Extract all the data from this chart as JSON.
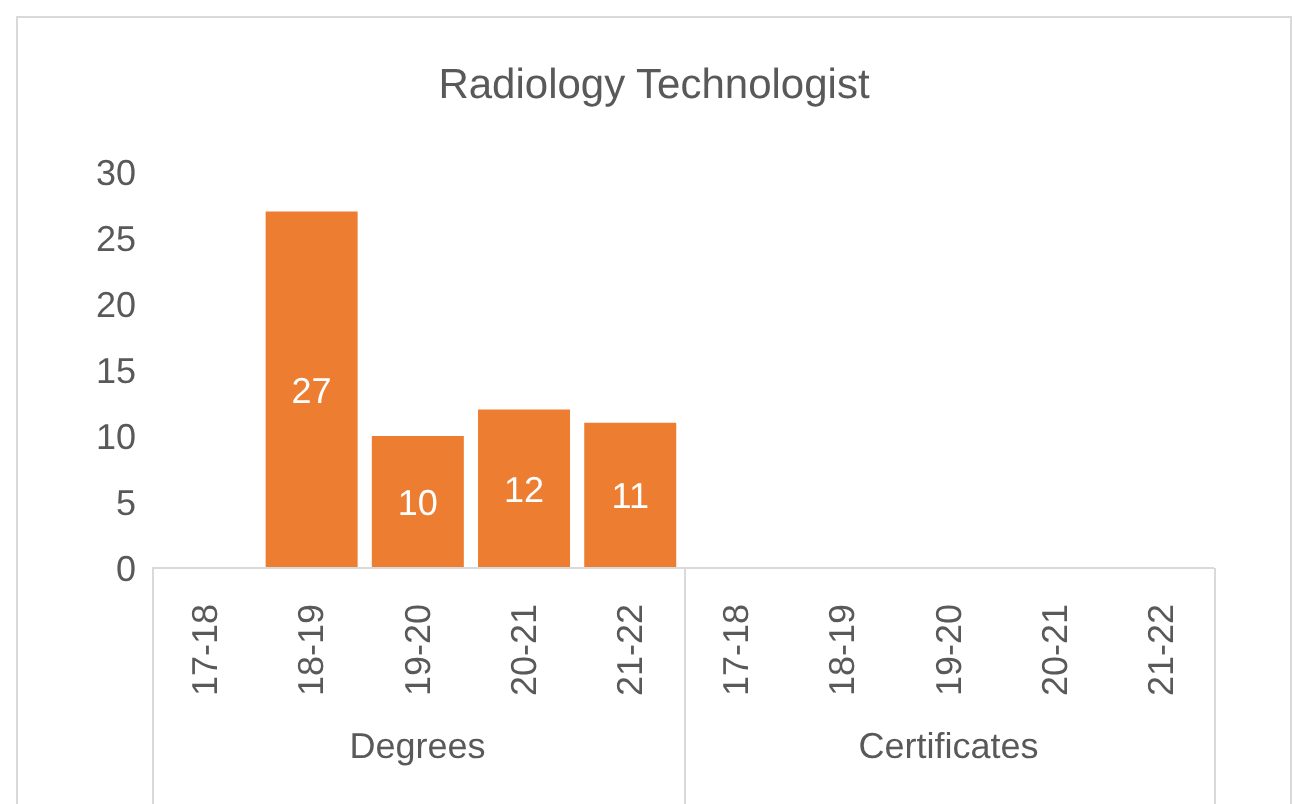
{
  "chart_data": {
    "type": "bar",
    "title": "Radiology Technologist",
    "categories": [
      "17-18",
      "18-19",
      "19-20",
      "20-21",
      "21-22",
      "17-18",
      "18-19",
      "19-20",
      "20-21",
      "21-22"
    ],
    "values": [
      null,
      27,
      10,
      12,
      11,
      null,
      null,
      null,
      null,
      null
    ],
    "color": "#ed7d31",
    "ylim": [
      0,
      30
    ],
    "yticks": [
      0,
      5,
      10,
      15,
      20,
      25,
      30
    ],
    "data_labels": true,
    "grid": false,
    "annotations": [
      "Degrees",
      "Certificates"
    ]
  }
}
